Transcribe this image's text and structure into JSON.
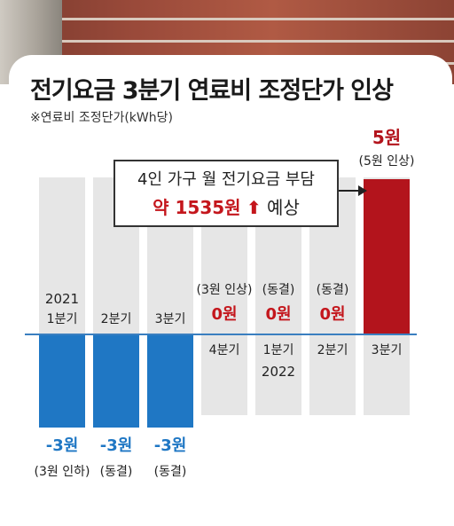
{
  "header": {
    "title": "전기요금 3분기 연료비 조정단가 인상",
    "subtitle": "※연료비 조정단가(kWh당)"
  },
  "callout": {
    "line1": "4인 가구 월 전기요금 부담",
    "amount": "약 1535원",
    "arrow": "⬆",
    "suffix": "예상"
  },
  "chart_data": {
    "type": "bar",
    "title": "전기요금 3분기 연료비 조정단가 인상",
    "subtitle": "※연료비 조정단가(kWh당)",
    "categories": [
      "1분기",
      "2분기",
      "3분기",
      "4분기",
      "1분기",
      "2분기",
      "3분기"
    ],
    "years": [
      {
        "label": "2021",
        "category_index": 0
      },
      {
        "label": "2022",
        "category_index": 4
      }
    ],
    "values": [
      -3,
      -3,
      -3,
      0,
      0,
      0,
      5
    ],
    "value_labels": [
      "-3원",
      "-3원",
      "-3원",
      "0원",
      "0원",
      "0원",
      "5원"
    ],
    "notes": [
      "(3원 인하)",
      "(동결)",
      "(동결)",
      "(3원 인상)",
      "(동결)",
      "(동결)",
      "(5원 인상)"
    ],
    "colors": {
      "negative": "#1f77c4",
      "positive": "#b3141c",
      "zero_label": "#c4161c",
      "background_column": "#e6e6e6",
      "axis": "#3a7fc0"
    },
    "ylim": [
      -3,
      5
    ]
  }
}
